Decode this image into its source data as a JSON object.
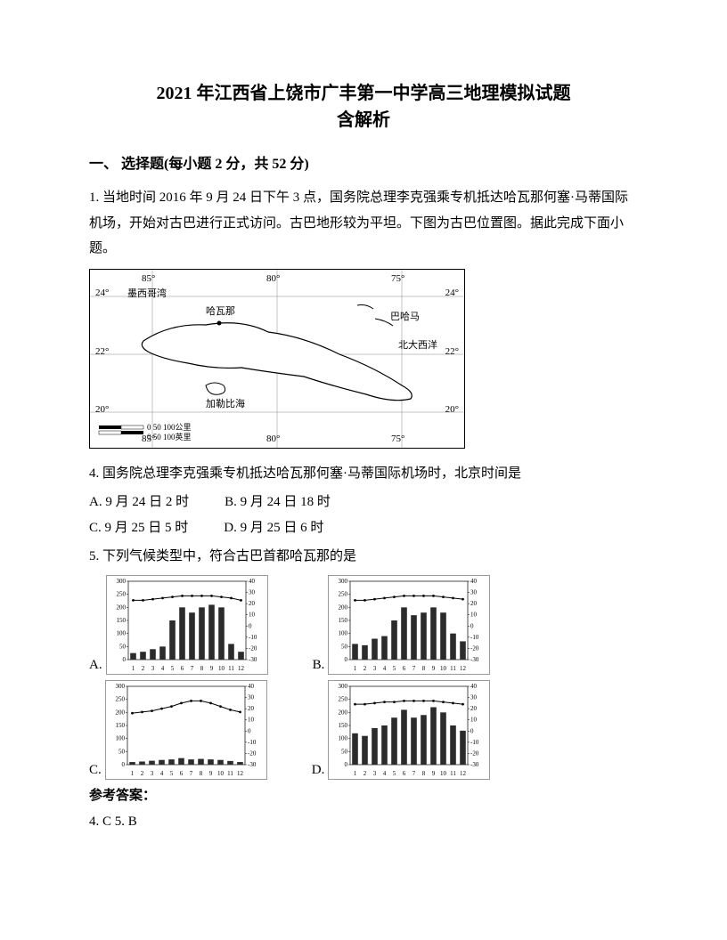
{
  "title_line1": "2021 年江西省上饶市广丰第一中学高三地理模拟试题",
  "title_line2": "含解析",
  "section1": "一、 选择题(每小题 2 分，共 52 分)",
  "q1_intro": "1. 当地时间 2016 年 9 月 24 日下午 3 点，国务院总理李克强乘专机抵达哈瓦那何塞·马蒂国际机场，开始对古巴进行正式访问。古巴地形较为平坦。下图为古巴位置图。据此完成下面小题。",
  "map": {
    "lon_labels": [
      "85°",
      "80°",
      "75°"
    ],
    "lat_labels_left": [
      "24°",
      "22°",
      "20°"
    ],
    "lat_labels_right": [
      "24°",
      "22°",
      "20°"
    ],
    "place_names": {
      "gulf": "墨西哥湾",
      "havana": "哈瓦那",
      "bahamas": "巴哈马",
      "atlantic": "北大西洋",
      "caribbean": "加勒比海"
    },
    "scale_text": "0  50  100公里",
    "scale_text2": "0     50    100英里",
    "coast_color": "#000000",
    "grid_color": "#888888",
    "background": "#ffffff"
  },
  "q4": {
    "stem": "4. 国务院总理李克强乘专机抵达哈瓦那何塞·马蒂国际机场时，北京时间是",
    "A": "A. 9 月 24 日 2 时",
    "B": "B. 9 月 24 日 18 时",
    "C": "C. 9 月 25 日 5 时",
    "D": "D. 9 月 25 日 6 时"
  },
  "q5": {
    "stem": "5. 下列气候类型中，符合古巴首都哈瓦那的是",
    "charts": {
      "common": {
        "months": [
          1,
          2,
          3,
          4,
          5,
          6,
          7,
          8,
          9,
          10,
          11,
          12
        ],
        "precip_y_ticks": [
          0,
          50,
          100,
          150,
          200,
          250,
          300
        ],
        "temp_y_ticks": [
          -30,
          -20,
          -10,
          0,
          10,
          20,
          30,
          40
        ],
        "bar_color": "#2b2b2b",
        "line_color": "#000000",
        "axis_color": "#000000",
        "grid_color": "#dddddd",
        "bg": "#ffffff",
        "font_size": 7
      },
      "A": {
        "precip": [
          25,
          30,
          40,
          50,
          150,
          200,
          180,
          200,
          210,
          200,
          60,
          30
        ],
        "temp": [
          23,
          23,
          24,
          25,
          26,
          27,
          27,
          27,
          27,
          26,
          25,
          23
        ]
      },
      "B": {
        "precip": [
          60,
          55,
          80,
          90,
          150,
          200,
          170,
          180,
          200,
          180,
          100,
          70
        ],
        "temp": [
          23,
          23,
          24,
          25,
          26,
          27,
          27,
          27,
          27,
          26,
          25,
          24
        ]
      },
      "C": {
        "precip": [
          10,
          12,
          15,
          18,
          20,
          25,
          20,
          22,
          20,
          18,
          14,
          10
        ],
        "temp": [
          16,
          17,
          18,
          20,
          22,
          25,
          27,
          27,
          25,
          22,
          19,
          17
        ]
      },
      "D": {
        "precip": [
          120,
          110,
          140,
          150,
          180,
          210,
          180,
          190,
          220,
          200,
          150,
          130
        ],
        "temp": [
          24,
          24,
          25,
          26,
          26,
          27,
          27,
          27,
          27,
          26,
          25,
          24
        ]
      }
    },
    "letters": {
      "A": "A.",
      "B": "B.",
      "C": "C.",
      "D": "D."
    }
  },
  "answers_label": "参考答案：",
  "answers": "4. C        5. B"
}
